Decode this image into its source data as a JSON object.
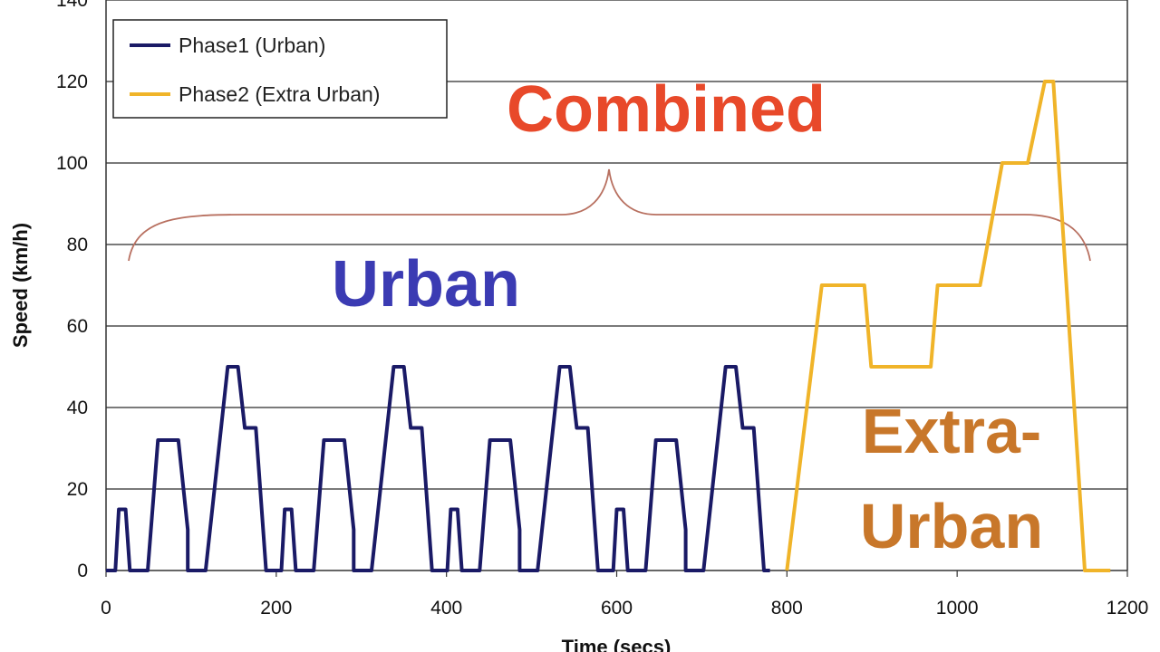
{
  "chart_data": {
    "type": "line",
    "title": "",
    "xlabel": "Time (secs)",
    "ylabel": "Speed (km/h)",
    "xlim": [
      0,
      1200
    ],
    "ylim": [
      0,
      140
    ],
    "xticks": [
      0,
      200,
      400,
      600,
      800,
      1000,
      1200
    ],
    "yticks": [
      0,
      20,
      40,
      60,
      80,
      100,
      120,
      140
    ],
    "grid": "horizontal",
    "legend_position": "top-left",
    "series": [
      {
        "name": "Phase1 (Urban)",
        "color": "#1a1a66",
        "points": [
          [
            0,
            0
          ],
          [
            11,
            0
          ],
          [
            15,
            15
          ],
          [
            23,
            15
          ],
          [
            28,
            0
          ],
          [
            49,
            0
          ],
          [
            61,
            32
          ],
          [
            85,
            32
          ],
          [
            96,
            10
          ],
          [
            96,
            0
          ],
          [
            117,
            0
          ],
          [
            143,
            50
          ],
          [
            155,
            50
          ],
          [
            163,
            35
          ],
          [
            176,
            35
          ],
          [
            188,
            0
          ],
          [
            195,
            0
          ],
          [
            206,
            0
          ],
          [
            210,
            15
          ],
          [
            218,
            15
          ],
          [
            223,
            0
          ],
          [
            244,
            0
          ],
          [
            256,
            32
          ],
          [
            280,
            32
          ],
          [
            291,
            10
          ],
          [
            291,
            0
          ],
          [
            312,
            0
          ],
          [
            338,
            50
          ],
          [
            350,
            50
          ],
          [
            358,
            35
          ],
          [
            371,
            35
          ],
          [
            383,
            0
          ],
          [
            390,
            0
          ],
          [
            401,
            0
          ],
          [
            405,
            15
          ],
          [
            413,
            15
          ],
          [
            418,
            0
          ],
          [
            439,
            0
          ],
          [
            451,
            32
          ],
          [
            475,
            32
          ],
          [
            486,
            10
          ],
          [
            486,
            0
          ],
          [
            507,
            0
          ],
          [
            533,
            50
          ],
          [
            545,
            50
          ],
          [
            553,
            35
          ],
          [
            566,
            35
          ],
          [
            578,
            0
          ],
          [
            585,
            0
          ],
          [
            596,
            0
          ],
          [
            600,
            15
          ],
          [
            608,
            15
          ],
          [
            613,
            0
          ],
          [
            634,
            0
          ],
          [
            646,
            32
          ],
          [
            670,
            32
          ],
          [
            681,
            10
          ],
          [
            681,
            0
          ],
          [
            702,
            0
          ],
          [
            728,
            50
          ],
          [
            740,
            50
          ],
          [
            748,
            35
          ],
          [
            761,
            35
          ],
          [
            773,
            0
          ],
          [
            780,
            0
          ]
        ]
      },
      {
        "name": "Phase2 (Extra Urban)",
        "color": "#f0b429",
        "points": [
          [
            800,
            0
          ],
          [
            841,
            70
          ],
          [
            891,
            70
          ],
          [
            899,
            50
          ],
          [
            969,
            50
          ],
          [
            977,
            70
          ],
          [
            1027,
            70
          ],
          [
            1053,
            100
          ],
          [
            1083,
            100
          ],
          [
            1103,
            120
          ],
          [
            1113,
            120
          ],
          [
            1150,
            0
          ],
          [
            1180,
            0
          ]
        ]
      }
    ],
    "annotations": {
      "combined": {
        "text": "Combined",
        "color": "#e8492a"
      },
      "urban": {
        "text": "Urban",
        "color": "#3b3bb3"
      },
      "extra_urban_line1": {
        "text": "Extra-",
        "color": "#c8772a"
      },
      "extra_urban_line2": {
        "text": "Urban",
        "color": "#c8772a"
      },
      "brace_color": "#b87060"
    }
  }
}
